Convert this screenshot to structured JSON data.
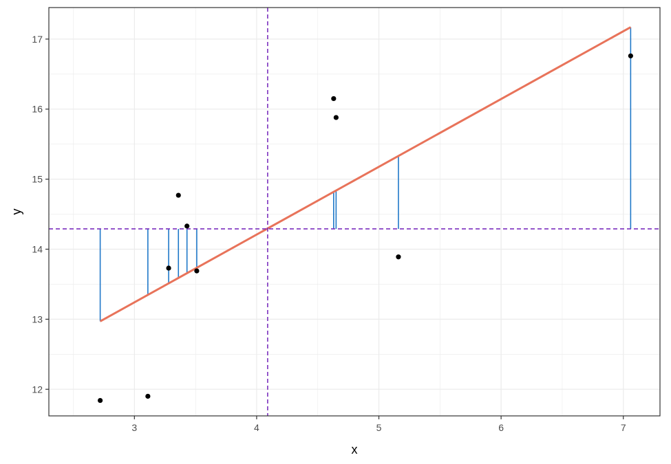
{
  "chart_data": {
    "type": "scatter",
    "xlabel": "x",
    "ylabel": "y",
    "xlim": [
      2.3,
      7.3
    ],
    "ylim": [
      11.62,
      17.45
    ],
    "x_ticks": [
      3,
      4,
      5,
      6,
      7
    ],
    "x_tick_labels": [
      "3",
      "4",
      "5",
      "6",
      "7"
    ],
    "y_ticks": [
      12,
      13,
      14,
      15,
      16,
      17
    ],
    "y_tick_labels": [
      "12",
      "13",
      "14",
      "15",
      "16",
      "17"
    ],
    "grid": true,
    "points": [
      {
        "x": 2.72,
        "y": 11.84
      },
      {
        "x": 3.11,
        "y": 11.9
      },
      {
        "x": 3.28,
        "y": 13.73
      },
      {
        "x": 3.36,
        "y": 14.77
      },
      {
        "x": 3.43,
        "y": 14.33
      },
      {
        "x": 3.51,
        "y": 13.69
      },
      {
        "x": 4.63,
        "y": 16.15
      },
      {
        "x": 4.65,
        "y": 15.88
      },
      {
        "x": 5.16,
        "y": 13.89
      },
      {
        "x": 7.06,
        "y": 16.76
      }
    ],
    "fit_line": {
      "x": [
        2.72,
        7.06
      ],
      "y": [
        12.97,
        17.17
      ]
    },
    "mean_x": 4.09,
    "mean_y": 14.29,
    "colors": {
      "points": "#000000",
      "fit_line": "#E8735A",
      "deviation_segments": "#1F78C8",
      "mean_lines": "#7B2FBE",
      "grid": "#EBEBEB",
      "panel_border": "#333333"
    }
  }
}
